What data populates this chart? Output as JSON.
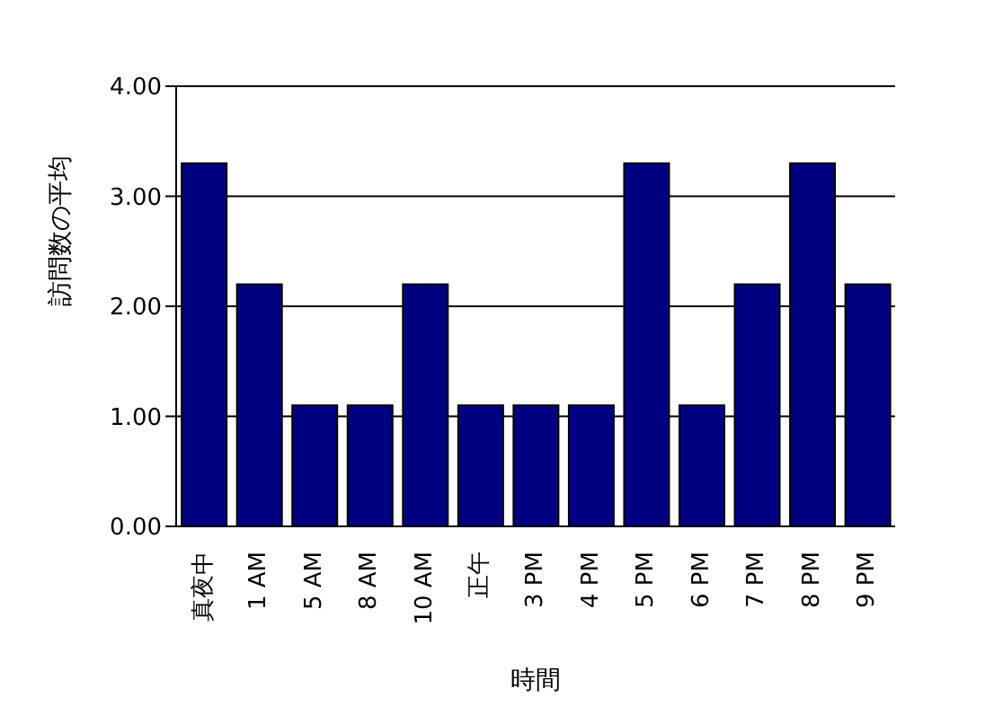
{
  "chart_data": {
    "type": "bar",
    "xlabel": "時間",
    "ylabel": "訪問数の平均",
    "categories": [
      "真夜中",
      "1 AM",
      "5 AM",
      "8 AM",
      "10 AM",
      "正午",
      "3 PM",
      "4 PM",
      "5 PM",
      "6 PM",
      "7 PM",
      "8 PM",
      "9 PM"
    ],
    "values": [
      3.3,
      2.2,
      1.1,
      1.1,
      2.2,
      1.1,
      1.1,
      1.1,
      3.3,
      1.1,
      2.2,
      3.3,
      2.2
    ],
    "color": "#000080",
    "ylim": [
      0,
      4
    ],
    "yticks": [
      {
        "value": 0,
        "label": "0.00"
      },
      {
        "value": 1,
        "label": "1.00"
      },
      {
        "value": 2,
        "label": "2.00"
      },
      {
        "value": 3,
        "label": "3.00"
      },
      {
        "value": 4,
        "label": "4.00"
      }
    ],
    "grid": "y",
    "legend": false
  }
}
